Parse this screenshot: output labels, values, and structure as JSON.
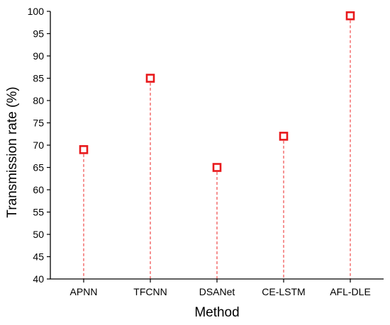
{
  "chart_data": {
    "type": "scatter",
    "title": "",
    "xlabel": "Method",
    "ylabel": "Transmission rate (%)",
    "categories": [
      "APNN",
      "TFCNN",
      "DSANet",
      "CE-LSTM",
      "AFL-DLE"
    ],
    "values": [
      69,
      85,
      65,
      72,
      99
    ],
    "ylim": [
      40,
      100
    ],
    "yticks": [
      40,
      45,
      50,
      55,
      60,
      65,
      70,
      75,
      80,
      85,
      90,
      95,
      100
    ],
    "grid": false,
    "drop_lines": true,
    "marker": "open-square",
    "marker_color": "#e8191c",
    "drop_line_color": "#f04a4a",
    "axis_color": "#000000"
  }
}
